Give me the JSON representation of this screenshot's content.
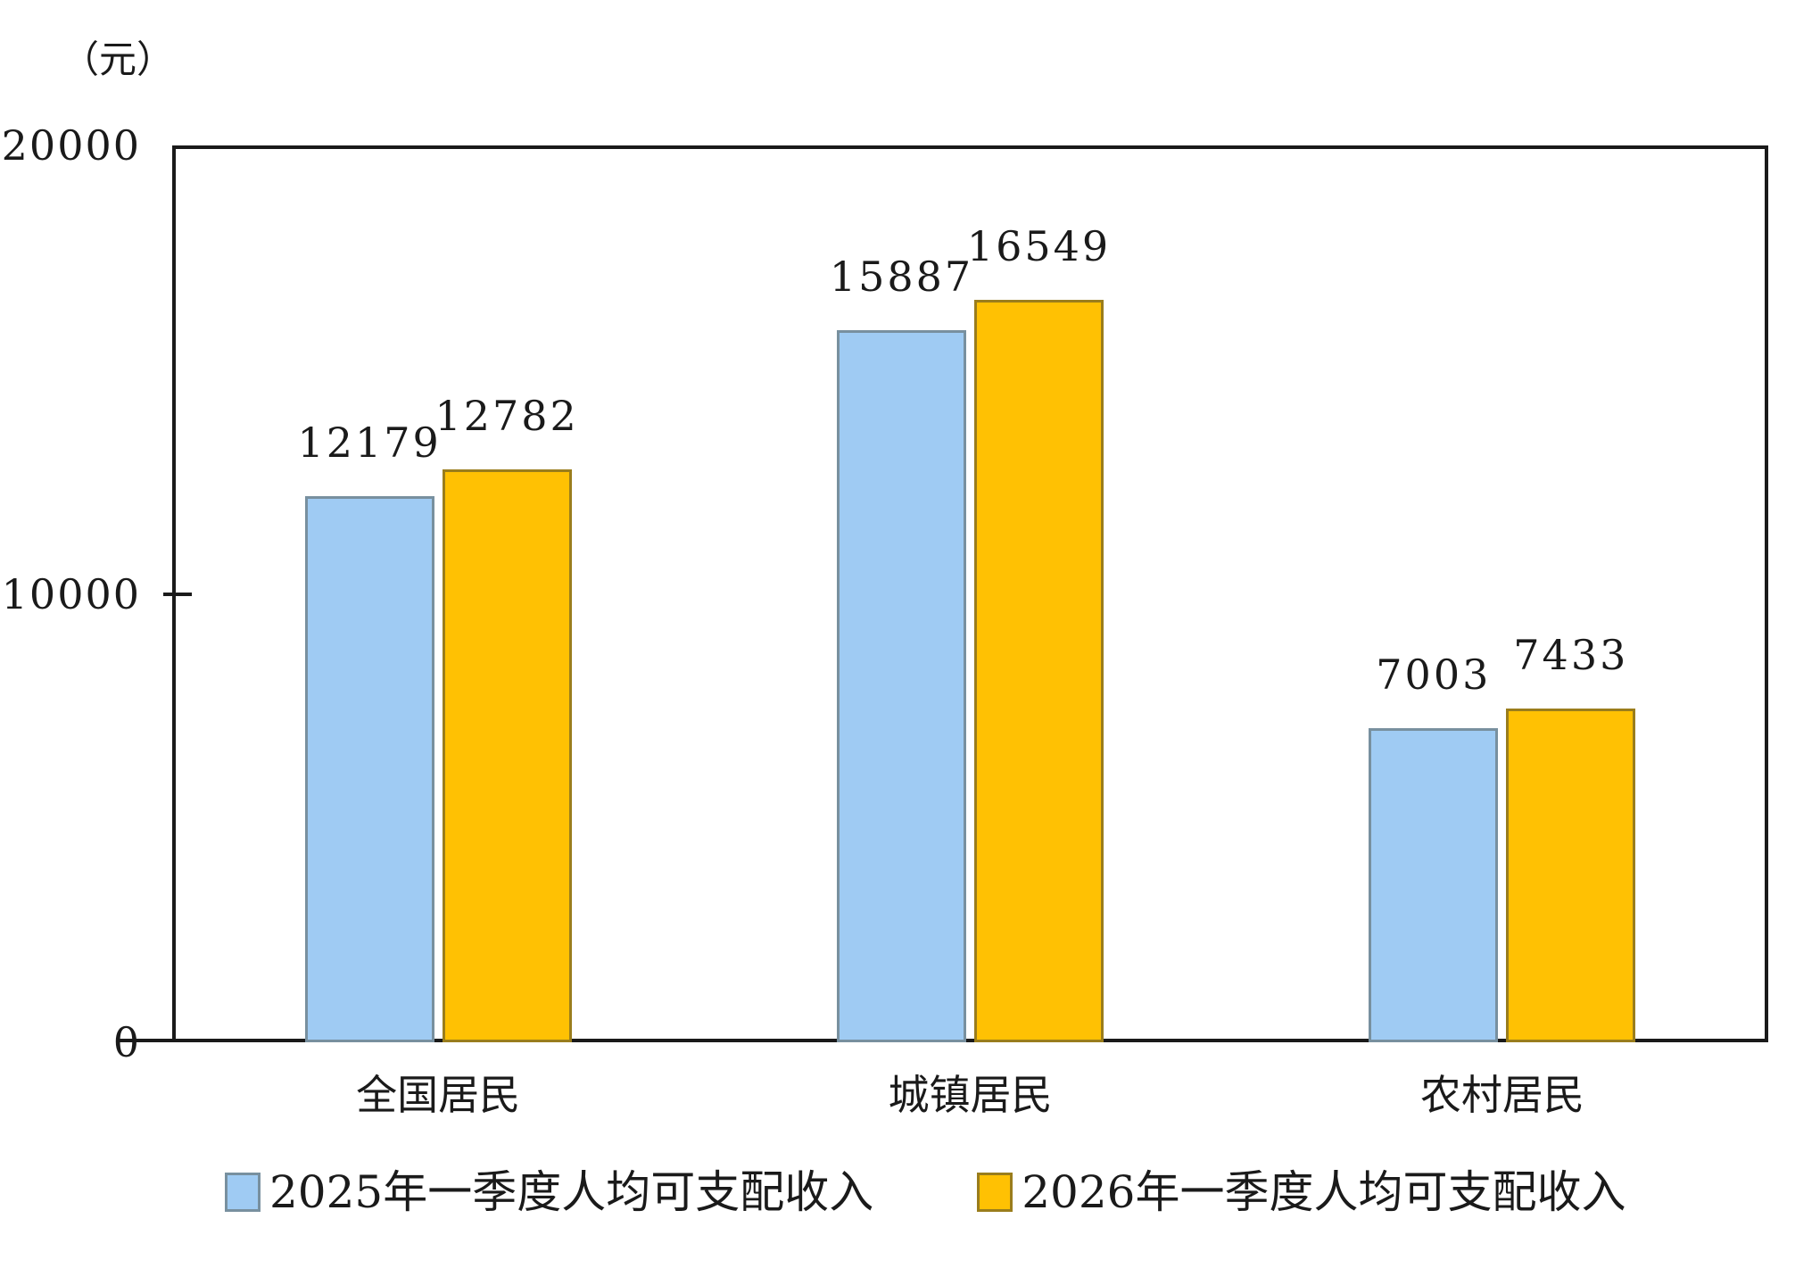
{
  "chart_data": {
    "type": "bar",
    "unit_label": "（元）",
    "categories": [
      "全国居民",
      "城镇居民",
      "农村居民"
    ],
    "series": [
      {
        "name": "2025年一季度人均可支配收入",
        "values": [
          12179,
          15887,
          7003
        ],
        "fill": "#9FCBF3",
        "border": "#78909F"
      },
      {
        "name": "2026年一季度人均可支配收入",
        "values": [
          12782,
          16549,
          7433
        ],
        "fill": "#FFC103",
        "border": "#9A7D1C"
      }
    ],
    "ylim": [
      0,
      20000
    ],
    "yticks": [
      0,
      10000,
      20000
    ],
    "grid": false,
    "legend_position": "bottom",
    "axis_color": "#1a1a1a"
  }
}
